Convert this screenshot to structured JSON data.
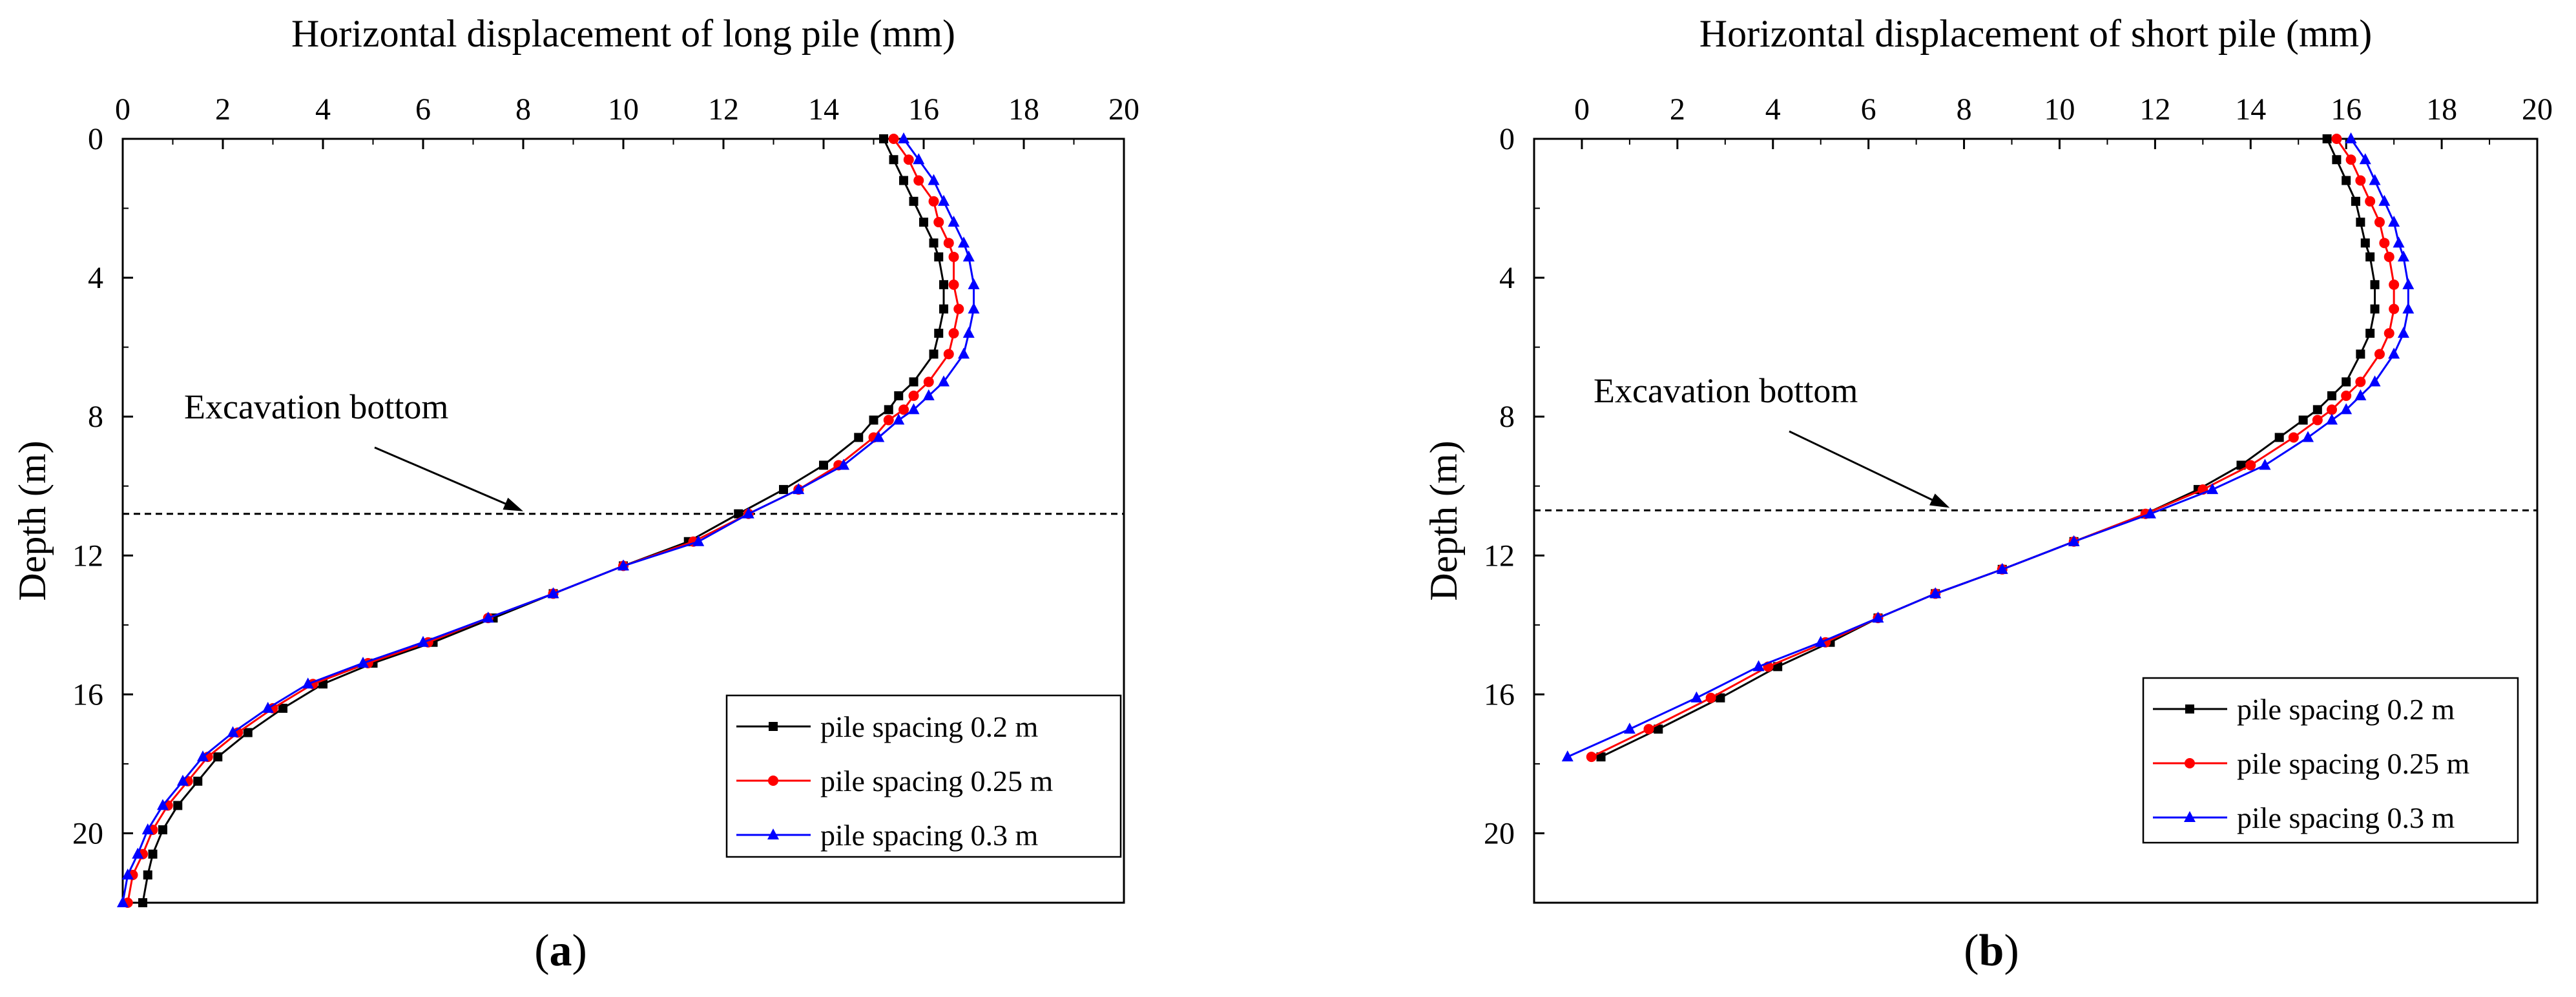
{
  "chart_data": [
    {
      "type": "line",
      "panel_label": "a",
      "title": "",
      "xlabel": "Horizontal displacement of long pile (mm)",
      "ylabel": "Depth (m)",
      "xlim": [
        0,
        20
      ],
      "ylim": [
        22,
        0
      ],
      "xticks": [
        "0",
        "2",
        "4",
        "6",
        "8",
        "10",
        "12",
        "14",
        "16",
        "18",
        "20"
      ],
      "yticks": [
        "0",
        "4",
        "8",
        "12",
        "16",
        "20"
      ],
      "annotation": {
        "text": "Excavation bottom",
        "depth": 10.8,
        "target_x": 8.0
      },
      "series": [
        {
          "name": "pile spacing 0.2 m",
          "color": "#000000",
          "marker": "square",
          "x": [
            15.2,
            15.4,
            15.6,
            15.8,
            16.0,
            16.2,
            16.3,
            16.4,
            16.4,
            16.3,
            16.2,
            15.8,
            15.5,
            15.3,
            15.0,
            14.7,
            14.0,
            13.2,
            12.3,
            11.3,
            10.0,
            8.6,
            7.4,
            6.2,
            5.0,
            4.0,
            3.2,
            2.5,
            1.9,
            1.5,
            1.1,
            0.8,
            0.6,
            0.5,
            0.4
          ],
          "y": [
            0,
            0.6,
            1.2,
            1.8,
            2.4,
            3.0,
            3.4,
            4.2,
            4.9,
            5.6,
            6.2,
            7.0,
            7.4,
            7.8,
            8.1,
            8.6,
            9.4,
            10.1,
            10.8,
            11.6,
            12.3,
            13.1,
            13.8,
            14.5,
            15.1,
            15.7,
            16.4,
            17.1,
            17.8,
            18.5,
            19.2,
            19.9,
            20.6,
            21.2,
            22.0
          ]
        },
        {
          "name": "pile spacing 0.25 m",
          "color": "#ff0000",
          "marker": "circle",
          "x": [
            15.4,
            15.7,
            15.9,
            16.2,
            16.3,
            16.5,
            16.6,
            16.6,
            16.7,
            16.6,
            16.5,
            16.1,
            15.8,
            15.6,
            15.3,
            15.0,
            14.3,
            13.5,
            12.5,
            11.4,
            10.0,
            8.6,
            7.3,
            6.1,
            4.9,
            3.8,
            3.0,
            2.3,
            1.7,
            1.3,
            0.9,
            0.6,
            0.4,
            0.2,
            0.1
          ],
          "y": [
            0,
            0.6,
            1.2,
            1.8,
            2.4,
            3.0,
            3.4,
            4.2,
            4.9,
            5.6,
            6.2,
            7.0,
            7.4,
            7.8,
            8.1,
            8.6,
            9.4,
            10.1,
            10.8,
            11.6,
            12.3,
            13.1,
            13.8,
            14.5,
            15.1,
            15.7,
            16.4,
            17.1,
            17.8,
            18.5,
            19.2,
            19.9,
            20.6,
            21.2,
            22.0
          ]
        },
        {
          "name": "pile spacing 0.3 m",
          "color": "#0000ff",
          "marker": "triangle",
          "x": [
            15.6,
            15.9,
            16.2,
            16.4,
            16.6,
            16.8,
            16.9,
            17.0,
            17.0,
            16.9,
            16.8,
            16.4,
            16.1,
            15.8,
            15.5,
            15.1,
            14.4,
            13.5,
            12.5,
            11.5,
            10.0,
            8.6,
            7.3,
            6.0,
            4.8,
            3.7,
            2.9,
            2.2,
            1.6,
            1.2,
            0.8,
            0.5,
            0.3,
            0.1,
            0.0
          ],
          "y": [
            0,
            0.6,
            1.2,
            1.8,
            2.4,
            3.0,
            3.4,
            4.2,
            4.9,
            5.6,
            6.2,
            7.0,
            7.4,
            7.8,
            8.1,
            8.6,
            9.4,
            10.1,
            10.8,
            11.6,
            12.3,
            13.1,
            13.8,
            14.5,
            15.1,
            15.7,
            16.4,
            17.1,
            17.8,
            18.5,
            19.2,
            19.9,
            20.6,
            21.2,
            22.0
          ]
        }
      ]
    },
    {
      "type": "line",
      "panel_label": "b",
      "title": "",
      "xlabel": "Horizontal displacement of short pile (mm)",
      "ylabel": "Depth (m)",
      "xlim": [
        -1,
        20
      ],
      "ylim": [
        22,
        0
      ],
      "xticks": [
        "0",
        "2",
        "4",
        "6",
        "8",
        "10",
        "12",
        "14",
        "16",
        "18",
        "20"
      ],
      "yticks": [
        "0",
        "4",
        "8",
        "12",
        "16",
        "20"
      ],
      "annotation": {
        "text": "Excavation bottom",
        "depth": 10.7,
        "target_x": 7.7
      },
      "series": [
        {
          "name": "pile spacing 0.2 m",
          "color": "#000000",
          "marker": "square",
          "x": [
            15.6,
            15.8,
            16.0,
            16.2,
            16.3,
            16.4,
            16.5,
            16.6,
            16.6,
            16.5,
            16.3,
            16.0,
            15.7,
            15.4,
            15.1,
            14.6,
            13.8,
            12.9,
            11.8,
            10.3,
            8.8,
            7.4,
            6.2,
            5.2,
            4.1,
            2.9,
            1.6,
            0.4
          ],
          "y": [
            0,
            0.6,
            1.2,
            1.8,
            2.4,
            3.0,
            3.4,
            4.2,
            4.9,
            5.6,
            6.2,
            7.0,
            7.4,
            7.8,
            8.1,
            8.6,
            9.4,
            10.1,
            10.8,
            11.6,
            12.4,
            13.1,
            13.8,
            14.5,
            15.2,
            16.1,
            17.0,
            17.8
          ]
        },
        {
          "name": "pile spacing 0.25 m",
          "color": "#ff0000",
          "marker": "circle",
          "x": [
            15.8,
            16.1,
            16.3,
            16.5,
            16.7,
            16.8,
            16.9,
            17.0,
            17.0,
            16.9,
            16.7,
            16.3,
            16.0,
            15.7,
            15.4,
            14.9,
            14.0,
            13.0,
            11.8,
            10.3,
            8.8,
            7.4,
            6.2,
            5.1,
            3.9,
            2.7,
            1.4,
            0.2
          ],
          "y": [
            0,
            0.6,
            1.2,
            1.8,
            2.4,
            3.0,
            3.4,
            4.2,
            4.9,
            5.6,
            6.2,
            7.0,
            7.4,
            7.8,
            8.1,
            8.6,
            9.4,
            10.1,
            10.8,
            11.6,
            12.4,
            13.1,
            13.8,
            14.5,
            15.2,
            16.1,
            17.0,
            17.8
          ]
        },
        {
          "name": "pile spacing 0.3 m",
          "color": "#0000ff",
          "marker": "triangle",
          "x": [
            16.1,
            16.4,
            16.6,
            16.8,
            17.0,
            17.1,
            17.2,
            17.3,
            17.3,
            17.2,
            17.0,
            16.6,
            16.3,
            16.0,
            15.7,
            15.2,
            14.3,
            13.2,
            11.9,
            10.3,
            8.8,
            7.4,
            6.2,
            5.0,
            3.7,
            2.4,
            1.0,
            -0.3
          ],
          "y": [
            0,
            0.6,
            1.2,
            1.8,
            2.4,
            3.0,
            3.4,
            4.2,
            4.9,
            5.6,
            6.2,
            7.0,
            7.4,
            7.8,
            8.1,
            8.6,
            9.4,
            10.1,
            10.8,
            11.6,
            12.4,
            13.1,
            13.8,
            14.5,
            15.2,
            16.1,
            17.0,
            17.8
          ]
        }
      ]
    }
  ]
}
